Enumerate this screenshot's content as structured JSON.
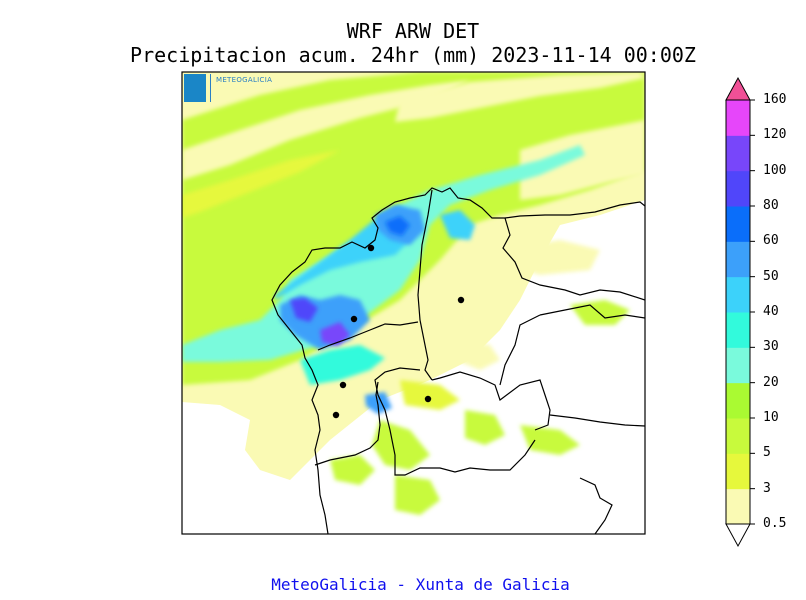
{
  "title": {
    "line1": "WRF ARW DET",
    "line2": "Precipitacion acum. 24hr (mm) 2023-11-14 00:00Z"
  },
  "logo": {
    "text": "METEOGALICIA"
  },
  "colorbar": {
    "levels": [
      "0.5",
      "3",
      "5",
      "10",
      "20",
      "30",
      "40",
      "50",
      "60",
      "80",
      "100",
      "120",
      "160"
    ],
    "colors": [
      "#fafab4",
      "#e6f83c",
      "#c8fa3c",
      "#aafa32",
      "#7afadc",
      "#32fadc",
      "#3cd2fa",
      "#3ca0fa",
      "#0a6efa",
      "#5046fa",
      "#7846fa",
      "#e646fa",
      "#f05096"
    ],
    "below_color": "#ffffff"
  },
  "footer": {
    "text": "MeteoGalicia - Xunta de Galicia"
  }
}
